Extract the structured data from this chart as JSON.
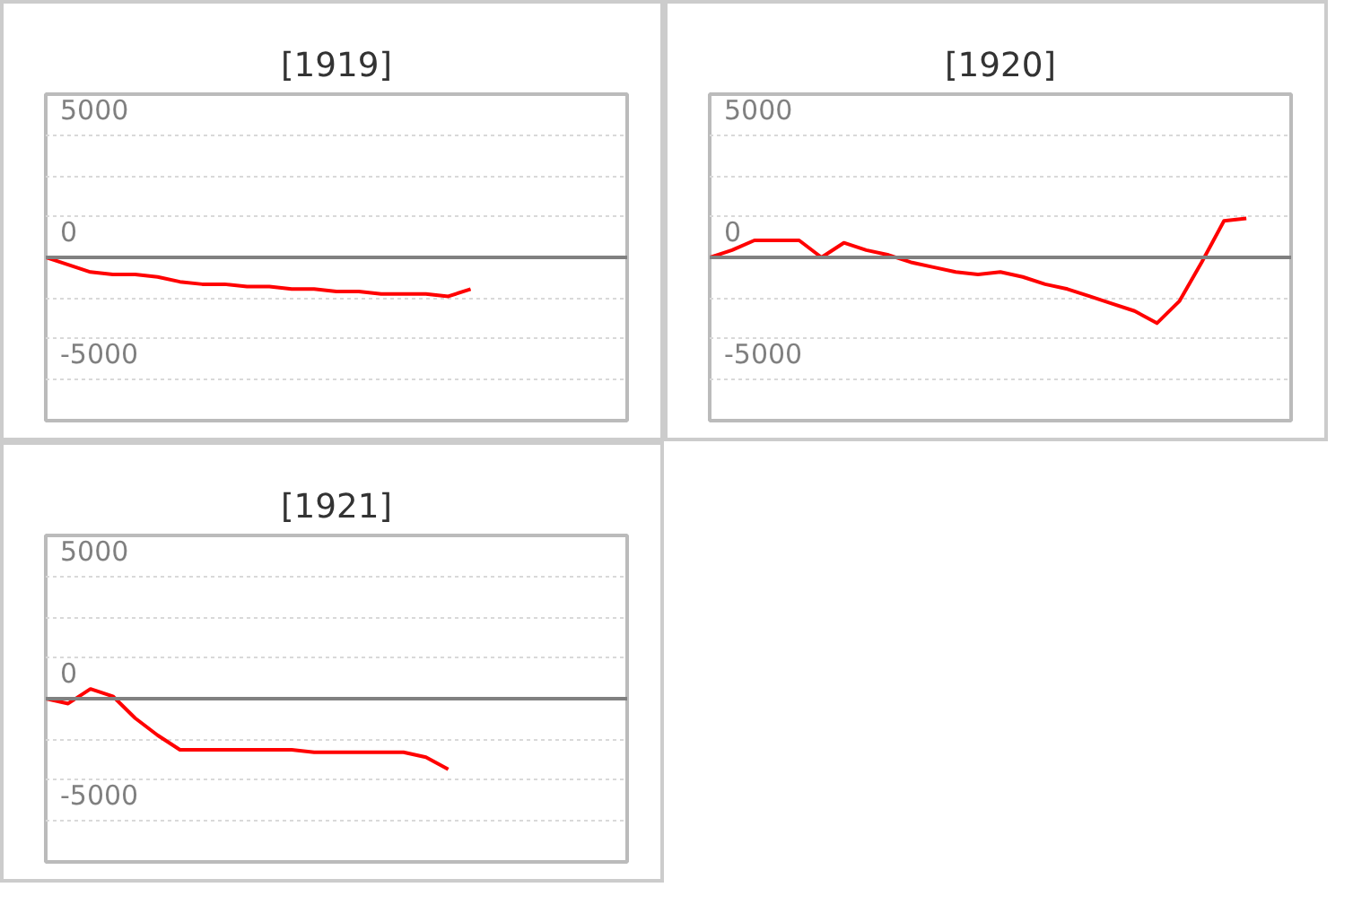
{
  "chart_data": [
    {
      "type": "line",
      "title": "[1919]",
      "categories": [
        null,
        null,
        null,
        null,
        null,
        null,
        null,
        null,
        null,
        null,
        null,
        null,
        null,
        null,
        null,
        null,
        null,
        null,
        null,
        null,
        null,
        null,
        null,
        null,
        null,
        null,
        null
      ],
      "series": [
        {
          "color": "#ff0000",
          "values": [
            0,
            -300,
            -600,
            -700,
            -700,
            -800,
            -1000,
            -1100,
            -1100,
            -1200,
            -1200,
            -1300,
            -1300,
            -1400,
            -1400,
            -1500,
            -1500,
            -1500,
            -1600,
            -1300,
            null,
            null,
            null,
            null,
            null,
            null,
            null
          ]
        }
      ],
      "ylim": [
        -6700,
        6700
      ],
      "yticks": [
        5000,
        {
          "value": 3333,
          "label": null
        },
        {
          "value": 1667,
          "label": null
        },
        0,
        {
          "value": -1667,
          "label": null
        },
        {
          "value": -3333,
          "label": null
        },
        -5000
      ],
      "grid": "y",
      "tick_labels": "y",
      "ref_lines": [
        {
          "axis": "y",
          "value": 0,
          "color": "#808080"
        }
      ]
    },
    {
      "type": "line",
      "title": "[1920]",
      "categories": [
        null,
        null,
        null,
        null,
        null,
        null,
        null,
        null,
        null,
        null,
        null,
        null,
        null,
        null,
        null,
        null,
        null,
        null,
        null,
        null,
        null,
        null,
        null,
        null,
        null,
        null,
        null
      ],
      "series": [
        {
          "color": "#ff0000",
          "values": [
            0,
            300,
            700,
            700,
            700,
            0,
            600,
            300,
            100,
            -200,
            -400,
            -600,
            -700,
            -600,
            -800,
            -1100,
            -1300,
            -1600,
            -1900,
            -2200,
            -2700,
            -1800,
            -200,
            1500,
            1600,
            null,
            null
          ]
        }
      ],
      "ylim": [
        -6700,
        6700
      ],
      "yticks": [
        5000,
        {
          "value": 3333,
          "label": null
        },
        {
          "value": 1667,
          "label": null
        },
        0,
        {
          "value": -1667,
          "label": null
        },
        {
          "value": -3333,
          "label": null
        },
        -5000
      ],
      "grid": "y",
      "tick_labels": "y",
      "ref_lines": [
        {
          "axis": "y",
          "value": 0,
          "color": "#808080"
        }
      ]
    },
    {
      "type": "line",
      "title": "[1921]",
      "categories": [
        null,
        null,
        null,
        null,
        null,
        null,
        null,
        null,
        null,
        null,
        null,
        null,
        null,
        null,
        null,
        null,
        null,
        null,
        null,
        null,
        null,
        null,
        null,
        null,
        null,
        null,
        null
      ],
      "series": [
        {
          "color": "#ff0000",
          "values": [
            0,
            -200,
            400,
            100,
            -800,
            -1500,
            -2100,
            -2100,
            -2100,
            -2100,
            -2100,
            -2100,
            -2200,
            -2200,
            -2200,
            -2200,
            -2200,
            -2400,
            -2900,
            null,
            null,
            null,
            null,
            null,
            null,
            null,
            null
          ]
        }
      ],
      "ylim": [
        -6700,
        6700
      ],
      "yticks": [
        5000,
        {
          "value": 3333,
          "label": null
        },
        {
          "value": 1667,
          "label": null
        },
        0,
        {
          "value": -1667,
          "label": null
        },
        {
          "value": -3333,
          "label": null
        },
        -5000
      ],
      "grid": "y",
      "tick_labels": "y",
      "ref_lines": [
        {
          "axis": "y",
          "value": 0,
          "color": "#808080"
        }
      ]
    }
  ]
}
